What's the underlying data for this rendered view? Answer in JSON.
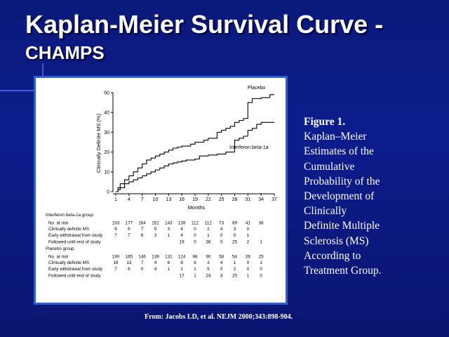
{
  "slide": {
    "title_line1": "Kaplan-Meier Survival Curve -",
    "title_line2": "CHAMPS",
    "caption_heading": "Figure 1.",
    "caption_body": "Kaplan–Meier\nEstimates of the\nCumulative\nProbability of the\nDevelopment of\nClinically\nDefinite Multiple\nSclerosis (MS)\nAccording to\nTreatment Group.",
    "source": "From:  Jacobs LD, et al.  NEJM 2000;343:898-904."
  },
  "chart_data": {
    "type": "line",
    "title": "",
    "xlabel": "Months",
    "ylabel": "Clinically Definite MS (%)",
    "xlim": [
      1,
      37
    ],
    "ylim": [
      0,
      50
    ],
    "x_ticks": [
      1,
      4,
      7,
      10,
      13,
      16,
      19,
      22,
      25,
      28,
      31,
      34,
      37
    ],
    "y_ticks": [
      0,
      10,
      20,
      30,
      40,
      50
    ],
    "series": [
      {
        "name": "Placebo",
        "color": "#000000",
        "points": [
          [
            1,
            0
          ],
          [
            1.5,
            2
          ],
          [
            2,
            4
          ],
          [
            3,
            6
          ],
          [
            4,
            8
          ],
          [
            5,
            10
          ],
          [
            6,
            12
          ],
          [
            7,
            14
          ],
          [
            8,
            16
          ],
          [
            9,
            17
          ],
          [
            10,
            18
          ],
          [
            11,
            19
          ],
          [
            12,
            20
          ],
          [
            13,
            21
          ],
          [
            14,
            22
          ],
          [
            15,
            22.5
          ],
          [
            16,
            23
          ],
          [
            17,
            23
          ],
          [
            18,
            24
          ],
          [
            19,
            25
          ],
          [
            20,
            25
          ],
          [
            21,
            26
          ],
          [
            22,
            27
          ],
          [
            23,
            27
          ],
          [
            24,
            30
          ],
          [
            25,
            31
          ],
          [
            26,
            32
          ],
          [
            27,
            33
          ],
          [
            28,
            35
          ],
          [
            29,
            36
          ],
          [
            30,
            37
          ],
          [
            31,
            45
          ],
          [
            32,
            47
          ],
          [
            33,
            47
          ],
          [
            34,
            47.5
          ],
          [
            35,
            47.5
          ],
          [
            36,
            49
          ],
          [
            37,
            49
          ]
        ]
      },
      {
        "name": "Interferon beta-1a",
        "color": "#000000",
        "points": [
          [
            1,
            0
          ],
          [
            1.5,
            1
          ],
          [
            2,
            2
          ],
          [
            3,
            4
          ],
          [
            4,
            5
          ],
          [
            5,
            6
          ],
          [
            6,
            7
          ],
          [
            7,
            8
          ],
          [
            8,
            9
          ],
          [
            9,
            10
          ],
          [
            10,
            11
          ],
          [
            11,
            12
          ],
          [
            12,
            13
          ],
          [
            13,
            14
          ],
          [
            14,
            14.5
          ],
          [
            15,
            15
          ],
          [
            16,
            15.5
          ],
          [
            17,
            16
          ],
          [
            18,
            16
          ],
          [
            19,
            16.5
          ],
          [
            20,
            18
          ],
          [
            21,
            18
          ],
          [
            22,
            18.5
          ],
          [
            23,
            18.5
          ],
          [
            24,
            19
          ],
          [
            25,
            19
          ],
          [
            26,
            20
          ],
          [
            27,
            20
          ],
          [
            28,
            26
          ],
          [
            29,
            27
          ],
          [
            30,
            28
          ],
          [
            31,
            31
          ],
          [
            32,
            32
          ],
          [
            33,
            34
          ],
          [
            34,
            35
          ],
          [
            35,
            35
          ],
          [
            36,
            35
          ],
          [
            37,
            35
          ]
        ]
      }
    ],
    "annotations": [
      "Placebo",
      "Interferon beta-1a"
    ],
    "risk_table": {
      "groups": [
        {
          "header": "Interferon beta-1a group",
          "rows": [
            {
              "label": "No. at risk",
              "values": [
                "193",
                "177",
                "164",
                "151",
                "143",
                "139",
                "112",
                "112",
                "73",
                "69",
                "41",
                "36"
              ]
            },
            {
              "label": "Clinically definite MS",
              "values": [
                "9",
                "6",
                "7",
                "5",
                "3",
                "4",
                "0",
                "2",
                "4",
                "3",
                "0",
                ""
              ]
            },
            {
              "label": "Early withdrawal from study",
              "values": [
                "7",
                "7",
                "6",
                "3",
                "1",
                "4",
                "0",
                "1",
                "0",
                "0",
                "1",
                ""
              ]
            },
            {
              "label": "Followed until end of study",
              "values": [
                "",
                "",
                "",
                "",
                "",
                "19",
                "0",
                "36",
                "0",
                "25",
                "2",
                "1"
              ]
            }
          ]
        },
        {
          "header": "Placebo group",
          "rows": [
            {
              "label": "No. at risk",
              "values": [
                "190",
                "165",
                "146",
                "139",
                "131",
                "124",
                "98",
                "90",
                "58",
                "54",
                "26",
                "25"
              ]
            },
            {
              "label": "Clinically definite MS",
              "values": [
                "18",
                "13",
                "7",
                "4",
                "6",
                "8",
                "6",
                "3",
                "4",
                "1",
                "0",
                "1"
              ]
            },
            {
              "label": "Early withdrawal from study",
              "values": [
                "7",
                "6",
                "0",
                "4",
                "1",
                "1",
                "1",
                "5",
                "0",
                "2",
                "0",
                "0"
              ]
            },
            {
              "label": "Followed until end of study",
              "values": [
                "",
                "",
                "",
                "",
                "",
                "17",
                "1",
                "24",
                "3",
                "20",
                "1",
                "0"
              ]
            }
          ]
        }
      ]
    }
  }
}
